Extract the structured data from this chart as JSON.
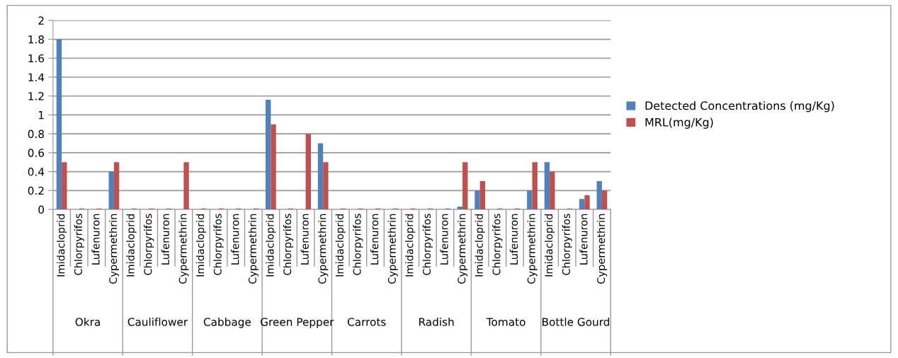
{
  "chart_data": {
    "type": "bar",
    "categories": [
      "Imidacloprid",
      "Chlorpyrifos",
      "Lufenuron",
      "Cypermethrin",
      "Imidacloprid",
      "Chlorpyrifos",
      "Lufenuron",
      "Cypermethrin",
      "Imidacloprid",
      "Chlorpyrifos",
      "Lufenuron",
      "Cypermethrin",
      "Imidacloprid",
      "Chlorpyrifos",
      "Lufenuron",
      "Cypermethrin",
      "Imidacloprid",
      "Chlorpyrifos",
      "Lufenuron",
      "Cypermethrin",
      "Imidacloprid",
      "Chlorpyrifos",
      "Lufenuron",
      "Cypermethrin",
      "Imidacloprid",
      "Chlorpyrifos",
      "Lufenuron",
      "Cypermethrin",
      "Imidacloprid",
      "Chlorpyrifos",
      "Lufenuron",
      "Cypermethrin"
    ],
    "series": [
      {
        "name": "Detected Concentrations (mg/Kg)",
        "color": "#4f81bd",
        "values": [
          1.8,
          0,
          0,
          0.4,
          0,
          0,
          0,
          0,
          0,
          0,
          0,
          0,
          1.16,
          0,
          0,
          0.7,
          0,
          0,
          0,
          0,
          0,
          0,
          0,
          0.03,
          0.2,
          0,
          0,
          0.2,
          0.5,
          0,
          0.11,
          0.3
        ]
      },
      {
        "name": "MRL(mg/Kg)",
        "color": "#c0504d",
        "values": [
          0.5,
          0.01,
          0.01,
          0.5,
          0.01,
          0.01,
          0.01,
          0.5,
          0.01,
          0.01,
          0.01,
          0.01,
          0.9,
          0.01,
          0.8,
          0.5,
          0.01,
          0.01,
          0.01,
          0.01,
          0.01,
          0.01,
          0.01,
          0.5,
          0.3,
          0.01,
          0.01,
          0.5,
          0.4,
          0.01,
          0.15,
          0.2
        ]
      }
    ],
    "annotations": [
      "Okra",
      "Cauliflower",
      "Cabbage",
      "Green Pepper",
      "Carrots",
      "Radish",
      "Tomato",
      "Bottle Gourd"
    ],
    "ylim": [
      0,
      2
    ],
    "yticks": [
      0,
      0.2,
      0.4,
      0.6,
      0.8,
      1,
      1.2,
      1.4,
      1.6,
      1.8,
      2
    ],
    "grid": "y",
    "legend": "right"
  }
}
